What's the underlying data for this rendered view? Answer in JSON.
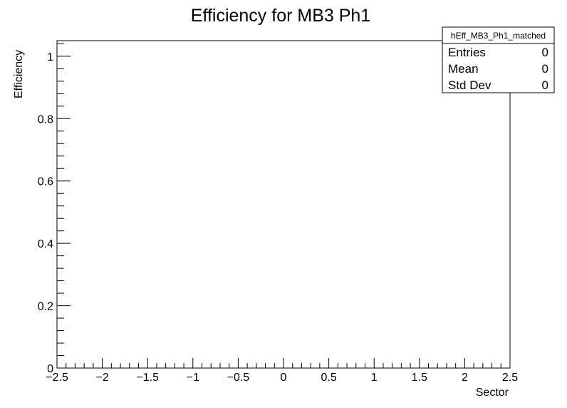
{
  "chart_data": {
    "type": "bar",
    "title": "Efficiency for MB3 Ph1",
    "xlabel": "Sector",
    "ylabel": "Efficiency",
    "xlim": [
      -2.5,
      2.5
    ],
    "ylim": [
      0,
      1.05
    ],
    "x_ticks": [
      -2.5,
      -2,
      -1.5,
      -1,
      -0.5,
      0,
      0.5,
      1,
      1.5,
      2,
      2.5
    ],
    "x_tick_labels": [
      "−2.5",
      "−2",
      "−1.5",
      "−1",
      "−0.5",
      "0",
      "0.5",
      "1",
      "1.5",
      "2",
      "2.5"
    ],
    "y_ticks": [
      0,
      0.2,
      0.4,
      0.6,
      0.8,
      1
    ],
    "y_tick_labels": [
      "0",
      "0.2",
      "0.4",
      "0.6",
      "0.8",
      "1"
    ],
    "series": [
      {
        "values": []
      }
    ],
    "grid": false,
    "stats_box": {
      "name": "hEff_MB3_Ph1_matched",
      "rows": [
        {
          "label": "Entries",
          "value": "0"
        },
        {
          "label": "Mean",
          "value": "0"
        },
        {
          "label": "Std Dev",
          "value": "0"
        }
      ],
      "placement": "top-right"
    }
  }
}
